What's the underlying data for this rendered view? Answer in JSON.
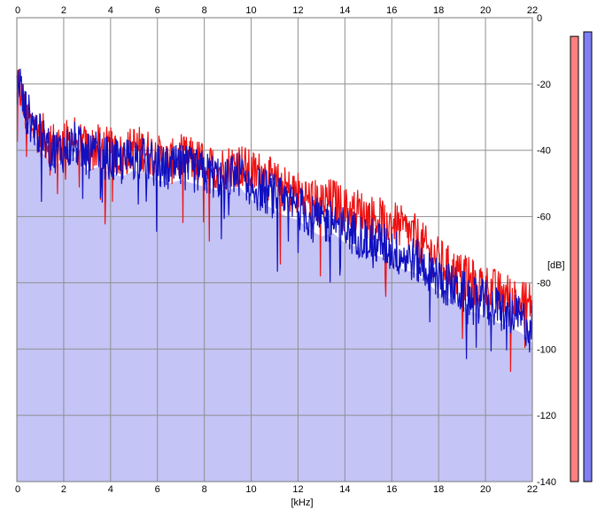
{
  "chart_data": {
    "type": "line",
    "title": "",
    "xlabel": "[kHz]",
    "ylabel": "[dB]",
    "xlim": [
      0,
      22
    ],
    "ylim": [
      -140,
      0
    ],
    "x_ticks": [
      "0",
      "2",
      "4",
      "6",
      "8",
      "10",
      "12",
      "14",
      "16",
      "18",
      "20",
      "22"
    ],
    "y_ticks": [
      "0",
      "-20",
      "-40",
      "-60",
      "-80",
      "-100",
      "-120",
      "-140"
    ],
    "grid": true,
    "legend": "none",
    "series": [
      {
        "color": "#ee1111",
        "x": [
          0,
          0.1,
          0.3,
          0.6,
          1,
          1.5,
          2,
          2.5,
          3,
          3.5,
          4,
          4.5,
          5,
          5.5,
          6,
          6.5,
          7,
          7.5,
          8,
          8.5,
          9,
          9.5,
          10,
          10.5,
          11,
          11.5,
          12,
          12.5,
          13,
          13.5,
          14,
          14.5,
          15,
          15.5,
          16,
          16.5,
          17,
          17.5,
          18,
          18.5,
          19,
          19.5,
          20,
          20.5,
          21,
          21.5,
          22
        ],
        "y": [
          -25,
          -20,
          -28,
          -32,
          -35,
          -38,
          -38,
          -36,
          -40,
          -39,
          -40,
          -42,
          -39,
          -40,
          -42,
          -44,
          -42,
          -43,
          -44,
          -46,
          -45,
          -44,
          -47,
          -47,
          -50,
          -52,
          -53,
          -55,
          -56,
          -55,
          -58,
          -58,
          -60,
          -61,
          -62,
          -64,
          -66,
          -70,
          -73,
          -76,
          -78,
          -80,
          -81,
          -83,
          -84,
          -86,
          -86
        ]
      },
      {
        "color": "#1010c0",
        "x": [
          0,
          0.1,
          0.3,
          0.6,
          1,
          1.5,
          2,
          2.5,
          3,
          3.5,
          4,
          4.5,
          5,
          5.5,
          6,
          6.5,
          7,
          7.5,
          8,
          8.5,
          9,
          9.5,
          10,
          10.5,
          11,
          11.5,
          12,
          12.5,
          13,
          13.5,
          14,
          14.5,
          15,
          15.5,
          16,
          16.5,
          17,
          17.5,
          18,
          18.5,
          19,
          19.5,
          20,
          20.5,
          21,
          21.5,
          22
        ],
        "y": [
          -22,
          -18,
          -27,
          -31,
          -36,
          -40,
          -40,
          -38,
          -42,
          -41,
          -43,
          -44,
          -42,
          -43,
          -45,
          -46,
          -45,
          -46,
          -47,
          -48,
          -48,
          -47,
          -51,
          -52,
          -54,
          -56,
          -57,
          -60,
          -62,
          -61,
          -64,
          -65,
          -67,
          -68,
          -70,
          -72,
          -73,
          -76,
          -79,
          -81,
          -83,
          -85,
          -86,
          -88,
          -89,
          -91,
          -94
        ]
      }
    ],
    "fill_color": "#c4c4f6",
    "meters": [
      {
        "color": "#ff8080",
        "level": 0.99
      },
      {
        "color": "#8080f4",
        "level": 1.0
      }
    ]
  }
}
